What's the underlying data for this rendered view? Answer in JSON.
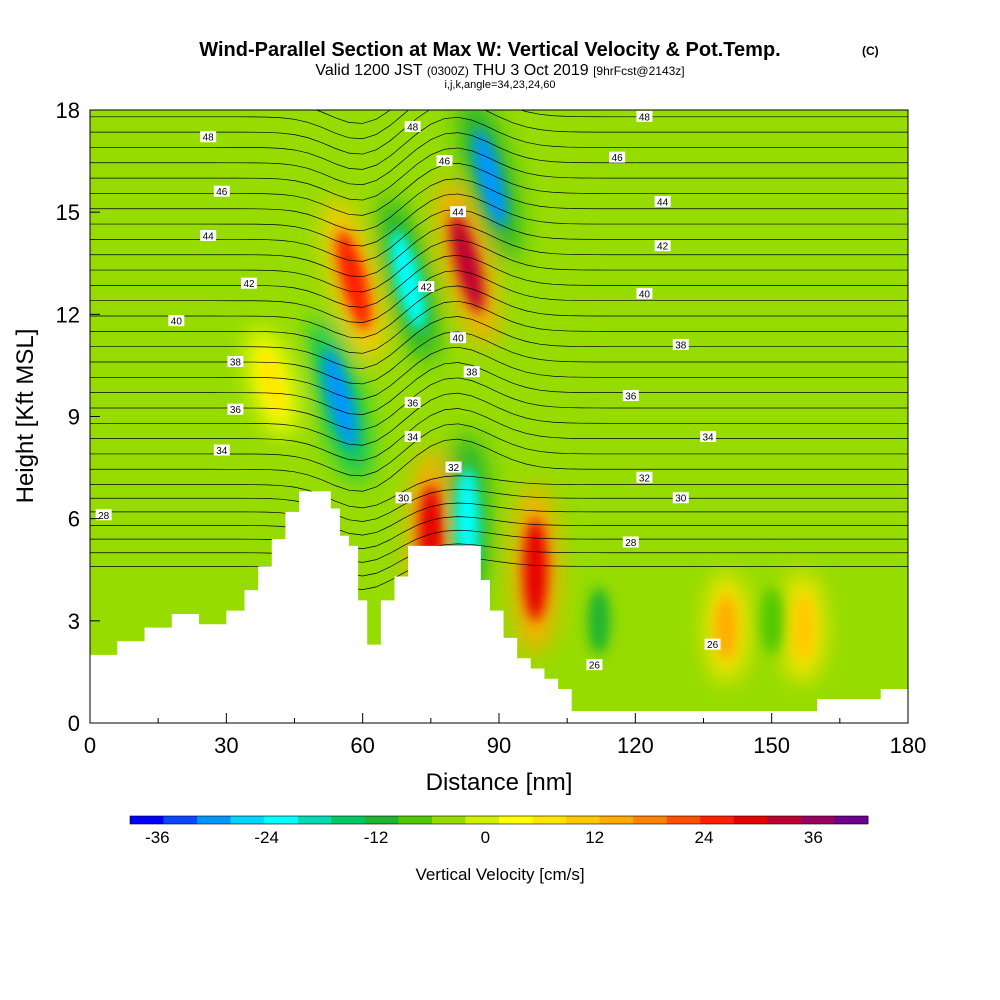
{
  "header": {
    "title_main": "Wind-Parallel Section at Max W: Vertical Velocity & Pot.Temp.",
    "title_suffix": "(C)",
    "valid_a": "Valid 1200 JST",
    "valid_b": "(0300Z)",
    "valid_c": "THU 3 Oct 2019",
    "valid_d": "[9hrFcst@2143z]",
    "params": "i,j,k,angle=34,23,24,60"
  },
  "chart_data": {
    "type": "heatmap",
    "xlabel": "Distance [nm]",
    "ylabel": "Height [Kft MSL]",
    "xlim": [
      0,
      180
    ],
    "ylim": [
      0,
      18
    ],
    "x_ticks": [
      0,
      30,
      60,
      90,
      120,
      150,
      180
    ],
    "y_ticks": [
      0,
      3,
      6,
      9,
      12,
      15,
      18
    ],
    "colorbar": {
      "label": "Vertical Velocity [cm/s]",
      "range": [
        -39,
        42
      ],
      "ticks": [
        -36,
        -24,
        -12,
        0,
        12,
        24,
        36
      ],
      "colors": [
        "#0000ff",
        "#0a46ff",
        "#0096ff",
        "#00d7ff",
        "#00ffff",
        "#00dcb4",
        "#00c864",
        "#1eb432",
        "#50c800",
        "#96dc00",
        "#d2f000",
        "#ffff00",
        "#ffe600",
        "#ffc800",
        "#ffaa00",
        "#ff8200",
        "#ff5000",
        "#ff1e00",
        "#e60000",
        "#c00030",
        "#9a0060",
        "#6e0090"
      ]
    },
    "updrafts": [
      {
        "x": 58,
        "y": 13,
        "w": 26
      },
      {
        "x": 83,
        "y": 13.5,
        "w": 34
      },
      {
        "x": 75,
        "y": 5.5,
        "w": 28
      },
      {
        "x": 98,
        "y": 4.5,
        "w": 30
      },
      {
        "x": 140,
        "y": 2.8,
        "w": 14
      },
      {
        "x": 157,
        "y": 2.8,
        "w": 12
      },
      {
        "x": 40,
        "y": 10,
        "w": 8
      }
    ],
    "downdrafts": [
      {
        "x": 55,
        "y": 9.5,
        "w": -30
      },
      {
        "x": 70,
        "y": 13,
        "w": -24
      },
      {
        "x": 88,
        "y": 16,
        "w": -28
      },
      {
        "x": 83,
        "y": 6,
        "w": -22
      },
      {
        "x": 112,
        "y": 3,
        "w": -10
      },
      {
        "x": 150,
        "y": 3,
        "w": -8
      }
    ],
    "terrain": [
      {
        "x": 0,
        "h": 2.0
      },
      {
        "x": 6,
        "h": 2.4
      },
      {
        "x": 12,
        "h": 2.8
      },
      {
        "x": 18,
        "h": 3.2
      },
      {
        "x": 24,
        "h": 2.9
      },
      {
        "x": 30,
        "h": 3.3
      },
      {
        "x": 34,
        "h": 3.9
      },
      {
        "x": 37,
        "h": 4.6
      },
      {
        "x": 40,
        "h": 5.4
      },
      {
        "x": 43,
        "h": 6.2
      },
      {
        "x": 46,
        "h": 6.8
      },
      {
        "x": 50,
        "h": 6.8
      },
      {
        "x": 53,
        "h": 6.3
      },
      {
        "x": 55,
        "h": 5.5
      },
      {
        "x": 57,
        "h": 5.2
      },
      {
        "x": 59,
        "h": 3.6
      },
      {
        "x": 61,
        "h": 2.3
      },
      {
        "x": 64,
        "h": 3.6
      },
      {
        "x": 67,
        "h": 4.3
      },
      {
        "x": 70,
        "h": 5.2
      },
      {
        "x": 84,
        "h": 5.2
      },
      {
        "x": 86,
        "h": 4.2
      },
      {
        "x": 88,
        "h": 3.3
      },
      {
        "x": 91,
        "h": 2.5
      },
      {
        "x": 94,
        "h": 1.9
      },
      {
        "x": 97,
        "h": 1.6
      },
      {
        "x": 100,
        "h": 1.3
      },
      {
        "x": 103,
        "h": 1.0
      },
      {
        "x": 106,
        "h": 0.35
      },
      {
        "x": 110,
        "h": 0.35
      },
      {
        "x": 152,
        "h": 0.35
      },
      {
        "x": 160,
        "h": 0.7
      },
      {
        "x": 174,
        "h": 1.0
      },
      {
        "x": 180,
        "h": 1.0
      }
    ],
    "isentropes": [
      26,
      28,
      30,
      32,
      34,
      36,
      38,
      40,
      42,
      44,
      46,
      48
    ],
    "contour_labels": [
      {
        "text": "48",
        "x": 26,
        "y": 17.2
      },
      {
        "text": "46",
        "x": 29,
        "y": 15.6
      },
      {
        "text": "44",
        "x": 26,
        "y": 14.3
      },
      {
        "text": "42",
        "x": 35,
        "y": 12.9
      },
      {
        "text": "40",
        "x": 19,
        "y": 11.8
      },
      {
        "text": "38",
        "x": 32,
        "y": 10.6
      },
      {
        "text": "36",
        "x": 32,
        "y": 9.2
      },
      {
        "text": "34",
        "x": 29,
        "y": 8.0
      },
      {
        "text": "28",
        "x": 3,
        "y": 6.1
      },
      {
        "text": "48",
        "x": 71,
        "y": 17.5
      },
      {
        "text": "46",
        "x": 78,
        "y": 16.5
      },
      {
        "text": "44",
        "x": 81,
        "y": 15.0
      },
      {
        "text": "42",
        "x": 74,
        "y": 12.8
      },
      {
        "text": "40",
        "x": 81,
        "y": 11.3
      },
      {
        "text": "38",
        "x": 84,
        "y": 10.3
      },
      {
        "text": "36",
        "x": 71,
        "y": 9.4
      },
      {
        "text": "34",
        "x": 71,
        "y": 8.4
      },
      {
        "text": "32",
        "x": 80,
        "y": 7.5
      },
      {
        "text": "30",
        "x": 69,
        "y": 6.6
      },
      {
        "text": "48",
        "x": 122,
        "y": 17.8
      },
      {
        "text": "46",
        "x": 116,
        "y": 16.6
      },
      {
        "text": "44",
        "x": 126,
        "y": 15.3
      },
      {
        "text": "42",
        "x": 126,
        "y": 14.0
      },
      {
        "text": "40",
        "x": 122,
        "y": 12.6
      },
      {
        "text": "38",
        "x": 130,
        "y": 11.1
      },
      {
        "text": "36",
        "x": 119,
        "y": 9.6
      },
      {
        "text": "34",
        "x": 136,
        "y": 8.4
      },
      {
        "text": "32",
        "x": 122,
        "y": 7.2
      },
      {
        "text": "30",
        "x": 130,
        "y": 6.6
      },
      {
        "text": "28",
        "x": 119,
        "y": 5.3
      },
      {
        "text": "26",
        "x": 111,
        "y": 1.7
      },
      {
        "text": "26",
        "x": 137,
        "y": 2.3
      }
    ]
  }
}
